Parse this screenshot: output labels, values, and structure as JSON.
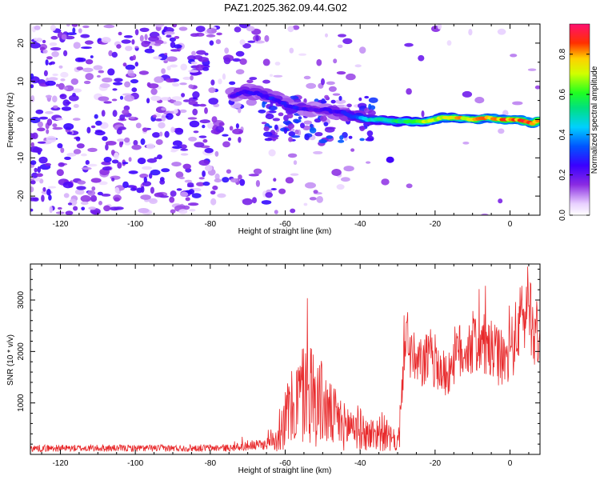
{
  "title": "PAZ1.2025.362.09.44.G02",
  "chart_data": [
    {
      "type": "heatmap",
      "name": "spectrogram",
      "xlabel": "Height of straight line (km)",
      "ylabel": "Frequency (Hz)",
      "xlim": [
        -128,
        8
      ],
      "ylim": [
        -25,
        25
      ],
      "xticks": [
        -120,
        -100,
        -80,
        -60,
        -40,
        -20,
        0
      ],
      "yticks": [
        -20,
        -10,
        0,
        10,
        20
      ],
      "colorbar": {
        "label": "Normalized spectral amplitude",
        "range": [
          0.0,
          0.95
        ],
        "ticks": [
          0.0,
          0.2,
          0.4,
          0.6,
          0.8
        ]
      },
      "signal_trace": {
        "description": "main frequency ridge (height km, frequency Hz, amplitude)",
        "points": [
          [
            -74,
            6.5,
            0.25
          ],
          [
            -70,
            7.5,
            0.3
          ],
          [
            -66,
            6.5,
            0.3
          ],
          [
            -62,
            5,
            0.3
          ],
          [
            -58,
            3,
            0.3
          ],
          [
            -54,
            3,
            0.25
          ],
          [
            -50,
            2.5,
            0.25
          ],
          [
            -45,
            2,
            0.3
          ],
          [
            -42,
            1,
            0.35
          ],
          [
            -38,
            0,
            0.5
          ],
          [
            -34,
            0,
            0.55
          ],
          [
            -30,
            -0.5,
            0.6
          ],
          [
            -26,
            -0.5,
            0.7
          ],
          [
            -22,
            -0.5,
            0.75
          ],
          [
            -18,
            0.5,
            0.8
          ],
          [
            -14,
            0.5,
            0.82
          ],
          [
            -10,
            0,
            0.85
          ],
          [
            -6,
            0.5,
            0.85
          ],
          [
            -2,
            0,
            0.9
          ],
          [
            2,
            0,
            0.9
          ],
          [
            6,
            -1,
            0.92
          ],
          [
            8,
            0,
            0.9
          ]
        ]
      }
    },
    {
      "type": "line",
      "name": "snr",
      "xlabel": "Height of straight line (km)",
      "ylabel": "SNR (10 * v/v)",
      "xlim": [
        -128,
        8
      ],
      "ylim": [
        0,
        3700
      ],
      "xticks": [
        -120,
        -100,
        -80,
        -60,
        -40,
        -20,
        0
      ],
      "yticks": [
        1000,
        2000,
        3000
      ],
      "color": "#e8282a",
      "envelope_km_snr": [
        [
          -128,
          150
        ],
        [
          -110,
          150
        ],
        [
          -90,
          150
        ],
        [
          -75,
          160
        ],
        [
          -70,
          200
        ],
        [
          -65,
          250
        ],
        [
          -62,
          500
        ],
        [
          -60,
          900
        ],
        [
          -58,
          1200
        ],
        [
          -56,
          1500
        ],
        [
          -54,
          1700
        ],
        [
          -52,
          1500
        ],
        [
          -50,
          1300
        ],
        [
          -48,
          1000
        ],
        [
          -46,
          900
        ],
        [
          -44,
          700
        ],
        [
          -42,
          800
        ],
        [
          -40,
          650
        ],
        [
          -38,
          500
        ],
        [
          -36,
          550
        ],
        [
          -34,
          600
        ],
        [
          -32,
          400
        ],
        [
          -30,
          300
        ],
        [
          -29,
          1000
        ],
        [
          -28,
          2500
        ],
        [
          -27,
          2100
        ],
        [
          -25,
          1700
        ],
        [
          -23,
          1800
        ],
        [
          -21,
          1900
        ],
        [
          -19,
          1700
        ],
        [
          -17,
          1500
        ],
        [
          -15,
          1900
        ],
        [
          -13,
          2000
        ],
        [
          -11,
          2100
        ],
        [
          -9,
          2200
        ],
        [
          -7,
          2100
        ],
        [
          -5,
          2000
        ],
        [
          -3,
          1900
        ],
        [
          -1,
          1800
        ],
        [
          1,
          2200
        ],
        [
          3,
          2600
        ],
        [
          5,
          3000
        ],
        [
          6,
          2600
        ],
        [
          7,
          2300
        ],
        [
          8,
          2400
        ]
      ]
    }
  ]
}
